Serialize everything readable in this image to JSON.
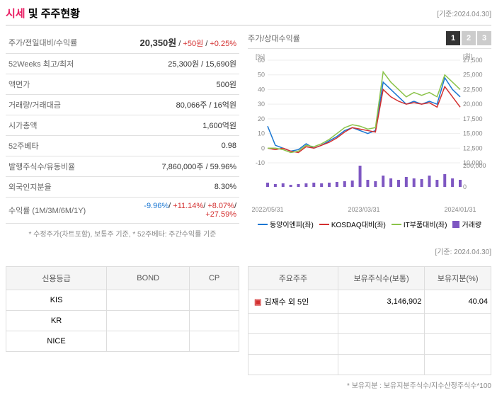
{
  "header": {
    "title_prefix": "시세",
    "title_mid": " 및 주주현황",
    "basis": "[기준:2024.04.30]"
  },
  "stock_rows": [
    {
      "label": "주가/전일대비/수익률",
      "value_parts": [
        {
          "text": "20,350원",
          "cls": "price-val"
        },
        {
          "text": " / ",
          "cls": ""
        },
        {
          "text": "+50원",
          "cls": "red"
        },
        {
          "text": " / ",
          "cls": ""
        },
        {
          "text": "+0.25%",
          "cls": "red"
        }
      ]
    },
    {
      "label": "52Weeks 최고/최저",
      "value": "25,300원 / 15,690원"
    },
    {
      "label": "액면가",
      "value": "500원"
    },
    {
      "label": "거래량/거래대금",
      "value": "80,066주 / 16억원"
    },
    {
      "label": "시가총액",
      "value": "1,600억원"
    },
    {
      "label": "52주베타",
      "value": "0.98"
    },
    {
      "label": "발행주식수/유동비율",
      "value": "7,860,000주 / 59.96%"
    },
    {
      "label": "외국인지분율",
      "value": "8.30%"
    },
    {
      "label": "수익률 (1M/3M/6M/1Y)",
      "value_parts": [
        {
          "text": "-9.96%",
          "cls": "blue"
        },
        {
          "text": "/ ",
          "cls": ""
        },
        {
          "text": "+11.14%",
          "cls": "red"
        },
        {
          "text": "/ ",
          "cls": ""
        },
        {
          "text": "+8.07%",
          "cls": "red"
        },
        {
          "text": "/ ",
          "cls": ""
        },
        {
          "text": "+27.59%",
          "cls": "red"
        }
      ]
    }
  ],
  "stock_footnote": "* 수정주가(차트포함), 보통주 기준, * 52주베타: 주간수익률 기준",
  "chart": {
    "title": "주가/상대수익률",
    "tabs": [
      "1",
      "2",
      "3"
    ],
    "active_tab": 0,
    "y_left_label": "[%]",
    "y_right_label": "[원]",
    "y_left_ticks": [
      -10,
      0,
      10,
      20,
      30,
      40,
      50,
      60
    ],
    "y_right_ticks": [
      10000,
      12500,
      15000,
      17500,
      20000,
      22500,
      25000,
      27500
    ],
    "x_labels": [
      "2022/05/31",
      "2023/03/31",
      "2024/01/31"
    ],
    "vol_y_right": [
      0,
      200000
    ],
    "series": [
      {
        "name": "동양이엔피(좌)",
        "color": "#1976d2",
        "type": "line",
        "data": [
          15,
          2,
          0,
          -2,
          -1,
          3,
          0,
          2,
          5,
          8,
          12,
          14,
          12,
          10,
          12,
          45,
          40,
          35,
          30,
          32,
          30,
          32,
          30,
          48,
          40,
          35
        ]
      },
      {
        "name": "KOSDAQ대비(좌)",
        "color": "#d32f2f",
        "type": "line",
        "data": [
          0,
          -1,
          0,
          -2,
          -3,
          1,
          0,
          2,
          4,
          7,
          11,
          14,
          13,
          12,
          11,
          40,
          35,
          32,
          30,
          31,
          30,
          31,
          28,
          42,
          35,
          28
        ]
      },
      {
        "name": "IT부품대비(좌)",
        "color": "#8bc34a",
        "type": "line",
        "data": [
          0,
          0,
          -1,
          -3,
          -2,
          2,
          1,
          3,
          6,
          10,
          14,
          16,
          15,
          13,
          14,
          52,
          45,
          40,
          35,
          38,
          36,
          38,
          35,
          50,
          45,
          40
        ]
      },
      {
        "name": "거래량",
        "color": "#7e57c2",
        "type": "bar",
        "data": [
          30,
          20,
          25,
          15,
          20,
          25,
          30,
          25,
          30,
          35,
          40,
          45,
          150,
          50,
          40,
          80,
          60,
          50,
          70,
          60,
          55,
          80,
          50,
          90,
          60,
          50
        ]
      }
    ]
  },
  "bottom_basis": "[기준: 2024.04.30]",
  "rating": {
    "headers": [
      "신용등급",
      "BOND",
      "CP"
    ],
    "rows": [
      {
        "agency": "KIS",
        "bond": "",
        "cp": ""
      },
      {
        "agency": "KR",
        "bond": "",
        "cp": ""
      },
      {
        "agency": "NICE",
        "bond": "",
        "cp": ""
      }
    ]
  },
  "shareholders": {
    "headers": [
      "주요주주",
      "보유주식수(보통)",
      "보유지분(%)"
    ],
    "rows": [
      {
        "name": "김재수 외 5인",
        "shares": "3,146,902",
        "pct": "40.04"
      }
    ],
    "footnote": "* 보유지분 : 보유지분주식수/지수산정주식수*100"
  }
}
